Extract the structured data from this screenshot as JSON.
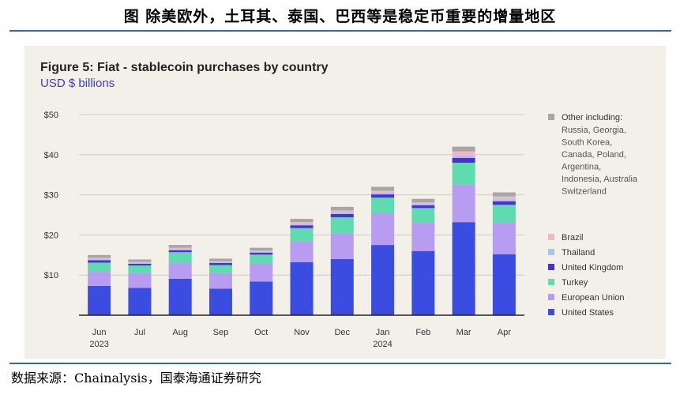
{
  "page_title": "图  除美欧外，土耳其、泰国、巴西等是稳定币重要的增量地区",
  "source": "数据来源：Chainalysis，国泰海通证券研究",
  "chart_data": {
    "type": "bar",
    "stacked": true,
    "title": "Figure 5: Fiat - stablecoin purchases by country",
    "subtitle": "USD $ billions",
    "categories": [
      {
        "month": "Jun",
        "year": "2023"
      },
      {
        "month": "Jul",
        "year": ""
      },
      {
        "month": "Aug",
        "year": ""
      },
      {
        "month": "Sep",
        "year": ""
      },
      {
        "month": "Oct",
        "year": ""
      },
      {
        "month": "Nov",
        "year": ""
      },
      {
        "month": "Dec",
        "year": ""
      },
      {
        "month": "Jan",
        "year": "2024"
      },
      {
        "month": "Feb",
        "year": ""
      },
      {
        "month": "Mar",
        "year": ""
      },
      {
        "month": "Apr",
        "year": ""
      }
    ],
    "ylim": [
      0,
      50
    ],
    "yticks": [
      {
        "value": 10,
        "label": "$10"
      },
      {
        "value": 20,
        "label": "$20"
      },
      {
        "value": 30,
        "label": "$30"
      },
      {
        "value": 40,
        "label": "$40"
      },
      {
        "value": 50,
        "label": "$50"
      }
    ],
    "grid": true,
    "legend_position": "right",
    "series": [
      {
        "name": "United States",
        "color": "#3a4de0",
        "values": [
          7.3,
          6.8,
          9.1,
          6.6,
          8.4,
          13.2,
          14.0,
          17.5,
          16.0,
          23.2,
          15.2
        ]
      },
      {
        "name": "European Union",
        "color": "#b89cf0",
        "values": [
          3.5,
          3.7,
          4.0,
          3.9,
          4.6,
          5.1,
          6.4,
          7.9,
          7.2,
          9.3,
          8.0
        ]
      },
      {
        "name": "Turkey",
        "color": "#5edcb0",
        "values": [
          2.3,
          1.9,
          2.6,
          2.0,
          2.1,
          3.4,
          4.0,
          3.9,
          3.5,
          5.5,
          4.3
        ]
      },
      {
        "name": "United Kingdom",
        "color": "#4f2fcc",
        "values": [
          0.6,
          0.4,
          0.5,
          0.5,
          0.5,
          0.7,
          0.8,
          0.8,
          0.7,
          1.2,
          0.9
        ]
      },
      {
        "name": "Thailand",
        "color": "#a7c4f5",
        "values": [
          0.3,
          0.3,
          0.3,
          0.3,
          0.3,
          0.4,
          0.5,
          0.5,
          0.4,
          0.6,
          0.5
        ]
      },
      {
        "name": "Brazil",
        "color": "#f2b6c9",
        "values": [
          0.3,
          0.2,
          0.3,
          0.2,
          0.2,
          0.4,
          0.4,
          0.4,
          0.3,
          1.0,
          0.7
        ]
      },
      {
        "name": "Other including:",
        "names_detail": [
          "Russia, Georgia,",
          "South Korea,",
          "Canada, Poland,",
          "Argentina,",
          "Indonesia, Australia",
          "Switzerland"
        ],
        "color": "#a9a6a2",
        "values": [
          0.7,
          0.6,
          0.7,
          0.6,
          0.7,
          0.8,
          0.9,
          1.0,
          0.9,
          1.2,
          1.0
        ]
      }
    ]
  }
}
